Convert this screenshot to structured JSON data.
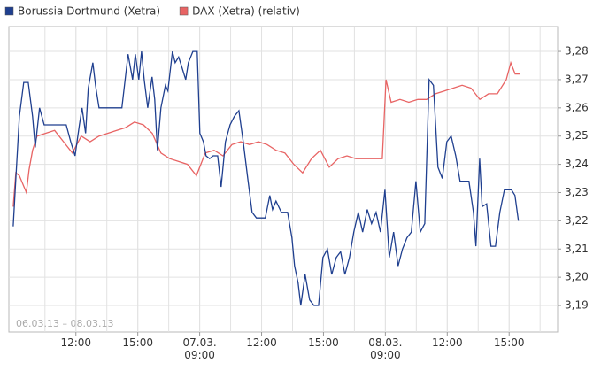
{
  "chart_data": {
    "type": "line",
    "annotation": "06.03.13 – 08.03.13",
    "ylim": [
      3.1806,
      3.2888
    ],
    "yticks": [
      {
        "value": 3.19,
        "label": "3,19"
      },
      {
        "value": 3.2,
        "label": "3,20"
      },
      {
        "value": 3.21,
        "label": "3,21"
      },
      {
        "value": 3.22,
        "label": "3,22"
      },
      {
        "value": 3.23,
        "label": "3,23"
      },
      {
        "value": 3.24,
        "label": "3,24"
      },
      {
        "value": 3.25,
        "label": "3,25"
      },
      {
        "value": 3.26,
        "label": "3,26"
      },
      {
        "value": 3.27,
        "label": "3,27"
      },
      {
        "value": 3.28,
        "label": "3,28"
      }
    ],
    "xlim": [
      -0.25,
      26.35
    ],
    "xticks": [
      {
        "value": 3,
        "label": "12:00"
      },
      {
        "value": 6,
        "label": "15:00"
      },
      {
        "value": 9,
        "label": "07.03.\n09:00"
      },
      {
        "value": 12,
        "label": "12:00"
      },
      {
        "value": 15,
        "label": "15:00"
      },
      {
        "value": 18,
        "label": "08.03.\n09:00"
      },
      {
        "value": 21,
        "label": "12:00"
      },
      {
        "value": 24,
        "label": "15:00"
      }
    ],
    "grid": true,
    "series": [
      {
        "name": "Borussia Dortmund (Xetra)",
        "color": "#1f3f8f",
        "x": [
          -0.04,
          0.09,
          0.26,
          0.47,
          0.69,
          0.9,
          1.03,
          1.24,
          1.46,
          2.1,
          2.53,
          2.75,
          2.96,
          3.17,
          3.3,
          3.47,
          3.6,
          3.82,
          3.95,
          4.12,
          5.23,
          5.53,
          5.75,
          5.88,
          6.05,
          6.18,
          6.31,
          6.48,
          6.69,
          6.82,
          6.95,
          7.12,
          7.34,
          7.46,
          7.68,
          7.81,
          7.98,
          8.11,
          8.32,
          8.45,
          8.67,
          8.88,
          9.01,
          9.18,
          9.31,
          9.48,
          9.65,
          9.87,
          10.04,
          10.25,
          10.47,
          10.68,
          10.9,
          11.11,
          11.33,
          11.54,
          11.75,
          12.18,
          12.4,
          12.53,
          12.7,
          12.96,
          13.26,
          13.47,
          13.6,
          13.77,
          13.9,
          14.11,
          14.33,
          14.54,
          14.76,
          14.97,
          15.19,
          15.4,
          15.62,
          15.83,
          16.04,
          16.26,
          16.47,
          16.69,
          16.9,
          17.12,
          17.33,
          17.55,
          17.76,
          17.98,
          18.19,
          18.4,
          18.62,
          18.83,
          19.05,
          19.26,
          19.48,
          19.69,
          19.91,
          20.12,
          20.33,
          20.55,
          20.76,
          20.98,
          21.19,
          21.41,
          21.62,
          22.05,
          22.27,
          22.39,
          22.57,
          22.69,
          22.91,
          23.12,
          23.34,
          23.55,
          23.77,
          24.11,
          24.28,
          24.45
        ],
        "values": [
          3.218,
          3.235,
          3.257,
          3.269,
          3.269,
          3.257,
          3.246,
          3.26,
          3.254,
          3.254,
          3.254,
          3.248,
          3.243,
          3.254,
          3.26,
          3.251,
          3.267,
          3.276,
          3.268,
          3.26,
          3.26,
          3.279,
          3.27,
          3.279,
          3.27,
          3.28,
          3.27,
          3.26,
          3.271,
          3.263,
          3.245,
          3.26,
          3.268,
          3.266,
          3.28,
          3.276,
          3.278,
          3.275,
          3.27,
          3.276,
          3.28,
          3.28,
          3.251,
          3.248,
          3.243,
          3.242,
          3.243,
          3.243,
          3.232,
          3.248,
          3.254,
          3.257,
          3.259,
          3.248,
          3.235,
          3.223,
          3.221,
          3.221,
          3.229,
          3.224,
          3.227,
          3.223,
          3.223,
          3.214,
          3.204,
          3.198,
          3.19,
          3.201,
          3.192,
          3.19,
          3.19,
          3.207,
          3.21,
          3.201,
          3.207,
          3.209,
          3.201,
          3.207,
          3.216,
          3.223,
          3.216,
          3.224,
          3.219,
          3.223,
          3.216,
          3.231,
          3.207,
          3.216,
          3.204,
          3.21,
          3.214,
          3.216,
          3.234,
          3.216,
          3.219,
          3.27,
          3.268,
          3.239,
          3.235,
          3.248,
          3.25,
          3.243,
          3.234,
          3.234,
          3.223,
          3.211,
          3.242,
          3.225,
          3.226,
          3.211,
          3.211,
          3.223,
          3.231,
          3.231,
          3.229,
          3.22
        ]
      },
      {
        "name": "DAX (Xetra) (relativ)",
        "color": "#e86464",
        "x": [
          -0.04,
          0.09,
          0.26,
          0.43,
          0.6,
          0.73,
          0.9,
          1.12,
          1.54,
          1.97,
          2.4,
          2.83,
          3.26,
          3.69,
          4.12,
          4.55,
          4.98,
          5.41,
          5.84,
          6.27,
          6.7,
          7.12,
          7.55,
          7.98,
          8.41,
          8.84,
          9.27,
          9.7,
          10.13,
          10.56,
          10.99,
          11.42,
          11.85,
          12.27,
          12.7,
          13.13,
          13.56,
          13.99,
          14.42,
          14.85,
          15.28,
          15.71,
          16.14,
          16.57,
          17.0,
          17.42,
          17.85,
          18.03,
          18.28,
          18.71,
          19.14,
          19.57,
          20.0,
          20.43,
          20.86,
          21.29,
          21.72,
          22.15,
          22.58,
          23.0,
          23.43,
          23.86,
          24.08,
          24.29,
          24.51
        ],
        "values": [
          3.225,
          3.237,
          3.236,
          3.233,
          3.23,
          3.238,
          3.245,
          3.25,
          3.251,
          3.252,
          3.248,
          3.244,
          3.25,
          3.248,
          3.25,
          3.251,
          3.252,
          3.253,
          3.255,
          3.254,
          3.251,
          3.244,
          3.242,
          3.241,
          3.24,
          3.236,
          3.244,
          3.245,
          3.243,
          3.247,
          3.248,
          3.247,
          3.248,
          3.247,
          3.245,
          3.244,
          3.24,
          3.237,
          3.242,
          3.245,
          3.239,
          3.242,
          3.243,
          3.242,
          3.242,
          3.242,
          3.242,
          3.27,
          3.262,
          3.263,
          3.262,
          3.263,
          3.263,
          3.265,
          3.266,
          3.267,
          3.268,
          3.267,
          3.263,
          3.265,
          3.265,
          3.27,
          3.276,
          3.272,
          3.272
        ]
      }
    ]
  }
}
